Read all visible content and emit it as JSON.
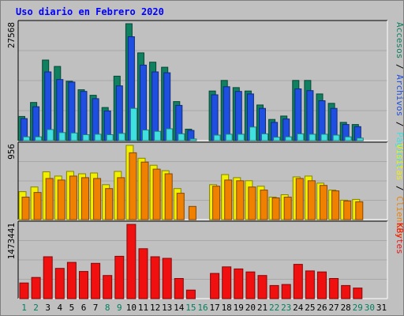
{
  "chart_data": [
    {
      "type": "bar",
      "title": "Uso diario en Febrero 2020",
      "categories": [
        "1",
        "2",
        "3",
        "4",
        "5",
        "6",
        "7",
        "8",
        "9",
        "10",
        "11",
        "12",
        "13",
        "14",
        "15",
        "16",
        "17",
        "18",
        "19",
        "20",
        "21",
        "22",
        "23",
        "24",
        "25",
        "26",
        "27",
        "28",
        "29",
        "30",
        "31"
      ],
      "weekend_days": [
        "1",
        "2",
        "8",
        "9",
        "15",
        "16",
        "22",
        "23",
        "29",
        "30"
      ],
      "ylim": [
        0,
        27568
      ],
      "max_label": "27568",
      "series": [
        {
          "name": "Accesos",
          "color": "#0f8060",
          "values": [
            5700,
            9000,
            19000,
            17500,
            14000,
            12000,
            10700,
            7800,
            15200,
            27568,
            20700,
            18500,
            17300,
            9200,
            2700,
            0,
            11700,
            14200,
            12500,
            11700,
            8400,
            5000,
            5800,
            14200,
            14200,
            11000,
            8800,
            4300,
            3800,
            0,
            0
          ]
        },
        {
          "name": "Archivos",
          "color": "#1f4fe0",
          "values": [
            5200,
            8000,
            16200,
            14400,
            13800,
            11600,
            9900,
            7000,
            12900,
            24500,
            17800,
            16200,
            16000,
            8300,
            2400,
            0,
            10800,
            12700,
            11600,
            11000,
            7600,
            4300,
            5100,
            12200,
            11800,
            9400,
            7600,
            3800,
            3300,
            0,
            0
          ]
        },
        {
          "name": "Páginas",
          "color": "#40e0e0",
          "values": [
            900,
            900,
            2600,
            1900,
            1800,
            1400,
            1500,
            1400,
            1700,
            7600,
            2500,
            2200,
            2800,
            1600,
            400,
            0,
            1300,
            1500,
            1500,
            3200,
            1600,
            800,
            900,
            1600,
            1500,
            1500,
            1300,
            900,
            600,
            0,
            0
          ]
        }
      ]
    },
    {
      "type": "bar",
      "ylim": [
        0,
        956
      ],
      "max_label": "956",
      "series": [
        {
          "name": "Visitas",
          "color": "#f0f000",
          "values": [
            360,
            420,
            615,
            560,
            620,
            590,
            600,
            450,
            620,
            956,
            790,
            700,
            630,
            400,
            0,
            0,
            450,
            580,
            540,
            500,
            430,
            290,
            320,
            550,
            560,
            470,
            380,
            250,
            260,
            0,
            0
          ]
        },
        {
          "name": "Clientes",
          "color": "#f08000",
          "values": [
            290,
            350,
            530,
            510,
            560,
            540,
            530,
            400,
            540,
            860,
            740,
            650,
            590,
            340,
            170,
            0,
            430,
            510,
            500,
            420,
            380,
            280,
            290,
            530,
            500,
            440,
            370,
            240,
            230,
            0,
            0
          ]
        }
      ]
    },
    {
      "type": "bar",
      "ylim": [
        0,
        1473441
      ],
      "max_label": "1473441",
      "series": [
        {
          "name": "KBytes",
          "color": "#f01010",
          "values": [
            310000,
            420000,
            830000,
            600000,
            720000,
            540000,
            700000,
            460000,
            840000,
            1473441,
            990000,
            830000,
            800000,
            400000,
            170000,
            0,
            500000,
            630000,
            590000,
            530000,
            460000,
            260000,
            280000,
            680000,
            550000,
            530000,
            400000,
            260000,
            210000,
            0,
            0
          ]
        }
      ]
    }
  ],
  "legend_separator": " / "
}
